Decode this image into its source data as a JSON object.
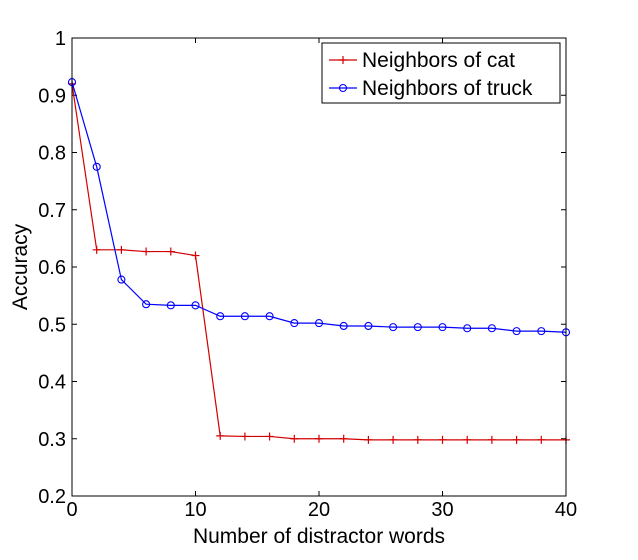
{
  "chart_data": {
    "type": "line",
    "title": "",
    "xlabel": "Number of distractor words",
    "ylabel": "Accuracy",
    "xlim": [
      0,
      40
    ],
    "ylim": [
      0.2,
      1.0
    ],
    "x_ticks": [
      0,
      10,
      20,
      30,
      40
    ],
    "x_tick_labels": [
      "0",
      "10",
      "20",
      "30",
      "40"
    ],
    "y_ticks": [
      0.2,
      0.3,
      0.4,
      0.5,
      0.6,
      0.7,
      0.8,
      0.9,
      1.0
    ],
    "y_tick_labels": [
      "0.2",
      "0.3",
      "0.4",
      "0.5",
      "0.6",
      "0.7",
      "0.8",
      "0.9",
      "1"
    ],
    "grid": false,
    "legend_position": "top-right",
    "x": [
      0,
      2,
      4,
      6,
      8,
      10,
      12,
      14,
      16,
      18,
      20,
      22,
      24,
      26,
      28,
      30,
      32,
      34,
      36,
      38,
      40
    ],
    "series": [
      {
        "name": "Neighbors of cat",
        "color": "#d40000",
        "marker": "plus",
        "values": [
          0.92,
          0.63,
          0.63,
          0.627,
          0.627,
          0.62,
          0.305,
          0.304,
          0.304,
          0.3,
          0.3,
          0.3,
          0.298,
          0.298,
          0.298,
          0.298,
          0.298,
          0.298,
          0.298,
          0.298,
          0.298
        ]
      },
      {
        "name": "Neighbors of truck",
        "color": "#0000ff",
        "marker": "circle",
        "values": [
          0.923,
          0.775,
          0.578,
          0.535,
          0.533,
          0.533,
          0.514,
          0.514,
          0.514,
          0.502,
          0.502,
          0.497,
          0.497,
          0.495,
          0.495,
          0.495,
          0.493,
          0.493,
          0.488,
          0.488,
          0.486
        ]
      }
    ]
  }
}
